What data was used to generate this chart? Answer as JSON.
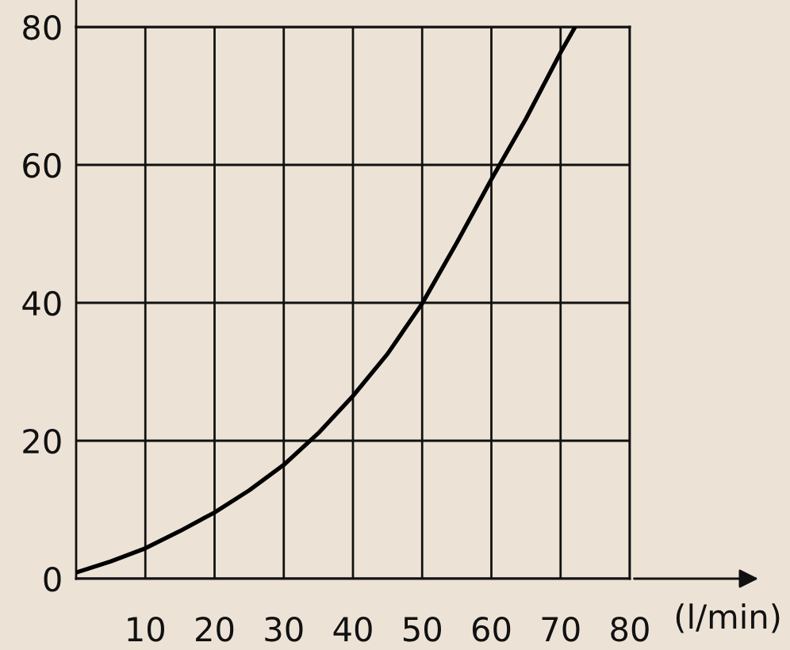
{
  "chart_data": {
    "type": "line",
    "xlabel": "(l/min)",
    "x": [
      0,
      5,
      10,
      15,
      20,
      25,
      30,
      35,
      40,
      45,
      50,
      55,
      60,
      65,
      70,
      72.1
    ],
    "series": [
      {
        "color": "#000000",
        "values": [
          0.9,
          2.5,
          4.4,
          6.9,
          9.6,
          12.8,
          16.5,
          21.1,
          26.5,
          32.6,
          39.9,
          48.7,
          57.9,
          66.7,
          76.3,
          80
        ]
      }
    ],
    "xlim": [
      0,
      80
    ],
    "ylim": [
      0,
      80
    ],
    "xticks": [
      10,
      20,
      30,
      40,
      50,
      60,
      70,
      80
    ],
    "yticks": [
      0,
      20,
      40,
      60,
      80
    ],
    "grid": true,
    "legend": false,
    "marker": "none",
    "line_style": "solid"
  }
}
